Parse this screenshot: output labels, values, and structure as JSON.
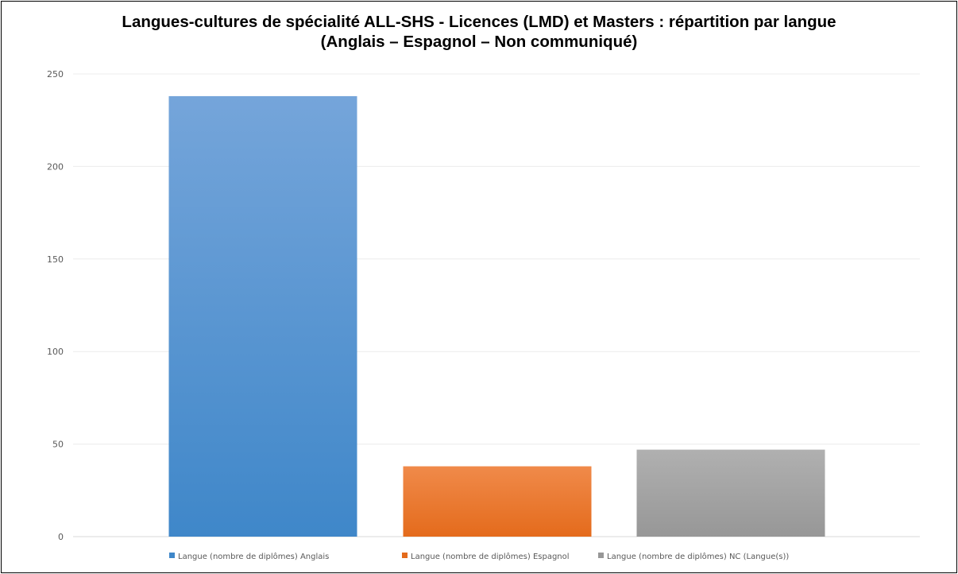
{
  "chart_data": {
    "type": "bar",
    "title": "Langues-cultures de spécialité ALL-SHS - Licences (LMD) et Masters : répartition par langue",
    "subtitle": "(Anglais – Espagnol – Non communiqué)",
    "xlabel": "",
    "ylabel": "",
    "ylim": [
      0,
      250
    ],
    "yticks": [
      "0",
      "50",
      "100",
      "150",
      "200",
      "250"
    ],
    "grid": true,
    "legend_position": "bottom",
    "series": [
      {
        "name": "Langue (nombre de diplômes) Anglais",
        "value": 238,
        "color_top": "#75a5da",
        "color_bottom": "#3f87c9"
      },
      {
        "name": "Langue (nombre de diplômes) Espagnol",
        "value": 38,
        "color_top": "#f08a4a",
        "color_bottom": "#e46b1c"
      },
      {
        "name": "Langue (nombre de diplômes) NC (Langue(s))",
        "value": 47,
        "color_top": "#b0b0b0",
        "color_bottom": "#979797"
      }
    ]
  }
}
